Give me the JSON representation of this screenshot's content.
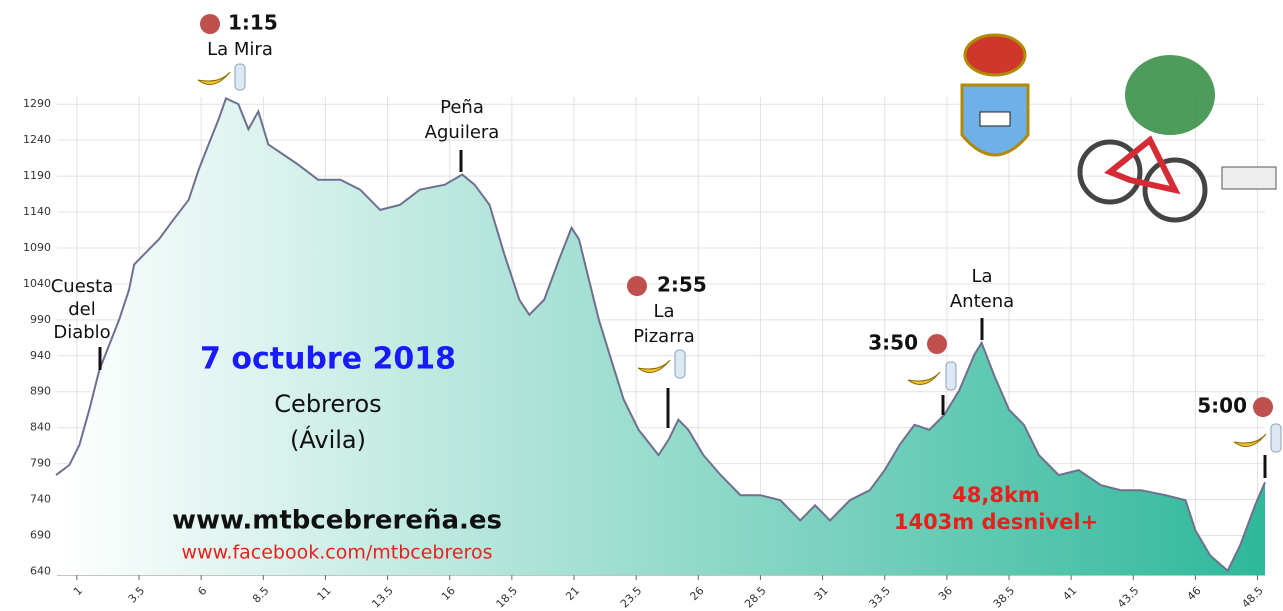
{
  "chart_data": {
    "type": "area",
    "x": [
      0.16,
      0.7,
      1.1,
      1.5,
      1.9,
      2.3,
      2.7,
      3.1,
      3.3,
      3.7,
      4.3,
      4.9,
      5.5,
      5.9,
      6.3,
      6.7,
      7.0,
      7.5,
      7.9,
      8.3,
      8.7,
      9.3,
      9.9,
      10.7,
      11.6,
      12.4,
      13.2,
      14.0,
      14.8,
      15.8,
      16.5,
      17.0,
      17.6,
      18.2,
      18.8,
      19.2,
      19.8,
      20.4,
      20.9,
      21.2,
      21.6,
      22.0,
      22.5,
      23.0,
      23.6,
      24.4,
      24.8,
      25.2,
      25.6,
      26.2,
      26.9,
      27.7,
      28.5,
      29.3,
      30.1,
      30.7,
      31.3,
      32.1,
      32.9,
      33.5,
      34.1,
      34.7,
      35.3,
      35.9,
      36.5,
      37.1,
      37.4,
      37.9,
      38.5,
      39.1,
      39.7,
      40.5,
      41.3,
      42.2,
      43.0,
      43.8,
      44.8,
      45.6,
      46.0,
      46.6,
      47.3,
      47.8,
      48.4,
      48.8
    ],
    "values": [
      774,
      788,
      816,
      865,
      920,
      955,
      990,
      1032,
      1067,
      1081,
      1102,
      1130,
      1157,
      1199,
      1234,
      1269,
      1298,
      1290,
      1255,
      1280,
      1234,
      1220,
      1206,
      1185,
      1185,
      1171,
      1143,
      1150,
      1171,
      1178,
      1192,
      1178,
      1150,
      1081,
      1018,
      997,
      1018,
      1074,
      1118,
      1102,
      1046,
      990,
      934,
      879,
      837,
      802,
      823,
      851,
      837,
      802,
      774,
      746,
      746,
      739,
      711,
      732,
      711,
      739,
      753,
      781,
      816,
      844,
      837,
      858,
      892,
      941,
      958,
      913,
      865,
      844,
      802,
      774,
      781,
      760,
      753,
      753,
      746,
      739,
      697,
      662,
      641,
      676,
      732,
      764
    ],
    "color": "#2fb89a",
    "xlim": [
      0.2,
      48.8
    ],
    "ylim": [
      635,
      1300
    ],
    "xticks": [
      1,
      3.5,
      6,
      8.5,
      11,
      13.5,
      16,
      18.5,
      21,
      23.5,
      26,
      28.5,
      31,
      33.5,
      36,
      38.5,
      41,
      43.5,
      46,
      48.5
    ],
    "yticks": [
      640,
      690,
      740,
      790,
      840,
      890,
      940,
      990,
      1040,
      1090,
      1140,
      1190,
      1240,
      1290
    ],
    "grid": true,
    "annotations": [
      [
        "1:15"
      ],
      [
        "La Mira"
      ],
      [
        "Peña",
        "Aguilera"
      ],
      [
        "Cuesta",
        "del",
        "Diablo"
      ],
      [
        "2:55"
      ],
      [
        "La",
        "Pizarra"
      ],
      [
        "3:50"
      ],
      [
        "La",
        "Antena"
      ],
      [
        "5:00"
      ],
      [
        "7 octubre 2018"
      ],
      [
        "Cebreros",
        "(Ávila)"
      ],
      [
        "www.mtbcebrereña.es"
      ],
      [
        "www.facebook.com/mtbcebreros"
      ],
      [
        "48,8km",
        "1403m desnivel+"
      ]
    ]
  }
}
